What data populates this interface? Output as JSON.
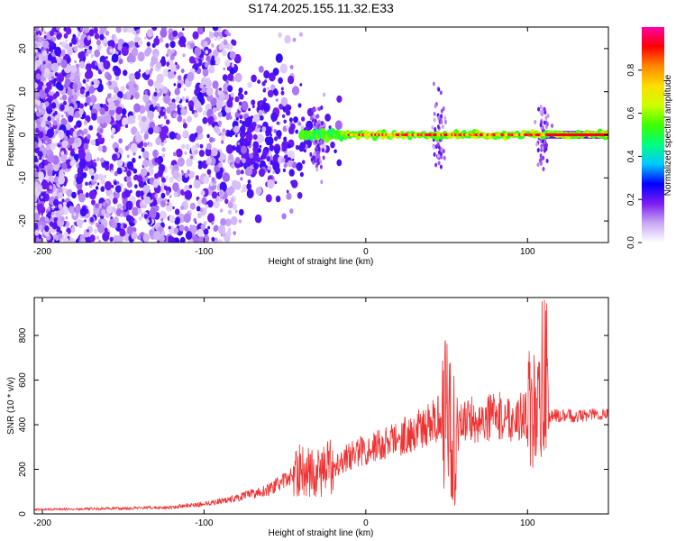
{
  "title": "S174.2025.155.11.32.E33",
  "chart_data": [
    {
      "type": "heatmap",
      "xlabel": "Height of straight line (km)",
      "ylabel": "Frequency (Hz)",
      "xlim": [
        -205,
        150
      ],
      "ylim": [
        -25,
        25
      ],
      "xticks": [
        -200,
        -100,
        0,
        100
      ],
      "yticks": [
        -20,
        -10,
        0,
        10,
        20
      ],
      "grid": false,
      "colorbar": {
        "label": "Normalized spectral amplitude",
        "range": [
          0,
          1
        ],
        "ticks": [
          "0.0",
          "0.2",
          "0.4",
          "0.6",
          "0.8"
        ],
        "ticks_values": [
          0,
          0.2,
          0.4,
          0.6,
          0.8
        ],
        "colors": [
          "#ffffff",
          "#c9a8f5",
          "#7a1cf0",
          "#0000ff",
          "#00c8ff",
          "#00ff7f",
          "#3cff00",
          "#ccff00",
          "#ffdd00",
          "#ff8800",
          "#ff0000",
          "#ff00aa"
        ]
      },
      "description_of_content": "Noise scatter of low amplitude spread over all frequencies for heights below about -20 km; a narrow high-amplitude line near 0 Hz from about -30 km to 150 km with bursts near 45 km and 110 km."
    },
    {
      "type": "line",
      "xlabel": "Height of straight line (km)",
      "ylabel": "SNR (10 * v/v)",
      "xlim": [
        -205,
        150
      ],
      "ylim": [
        0,
        970
      ],
      "xticks": [
        -200,
        -100,
        0,
        100
      ],
      "yticks": [
        0,
        200,
        400,
        600,
        800
      ],
      "color": "#ee3333",
      "grid": false,
      "series": [
        {
          "x": [
            -205,
            -180,
            -150,
            -120,
            -100,
            -80,
            -60,
            -50,
            -40,
            -30,
            -20,
            -10,
            0,
            10,
            20,
            30,
            40,
            45,
            50,
            55,
            60,
            70,
            80,
            90,
            100,
            105,
            110,
            112,
            115,
            130,
            150
          ],
          "y": [
            20,
            22,
            25,
            30,
            45,
            70,
            110,
            150,
            200,
            180,
            220,
            260,
            290,
            310,
            340,
            370,
            400,
            440,
            420,
            300,
            430,
            420,
            440,
            430,
            440,
            460,
            420,
            430,
            440,
            440,
            450
          ]
        }
      ]
    }
  ]
}
